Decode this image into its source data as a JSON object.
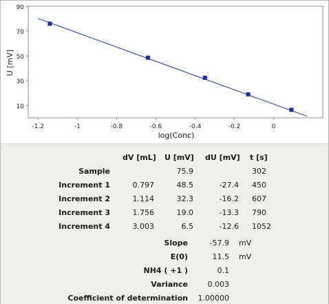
{
  "chart_data": {
    "type": "scatter",
    "xlabel": "log(Conc)",
    "ylabel": "U [mV]",
    "xlim": [
      -1.25,
      0.25
    ],
    "ylim": [
      0,
      90
    ],
    "xticks": [
      "-1.2",
      "-1",
      "-0.8",
      "-0.6",
      "-0.4",
      "-0.2",
      "0"
    ],
    "xtick_values": [
      -1.2,
      -1.0,
      -0.8,
      -0.6,
      -0.4,
      -0.2,
      0.0
    ],
    "yticks": [
      "90",
      "70",
      "50",
      "30",
      "10"
    ],
    "ytick_values": [
      90,
      70,
      50,
      30,
      10
    ],
    "points": [
      {
        "x": -1.14,
        "y": 75.9
      },
      {
        "x": -0.64,
        "y": 48.5
      },
      {
        "x": -0.35,
        "y": 32.3
      },
      {
        "x": -0.13,
        "y": 19.0
      },
      {
        "x": 0.09,
        "y": 6.5
      }
    ],
    "fit_line": {
      "x": [
        -1.2,
        0.17
      ],
      "y": [
        80.1,
        1.3
      ]
    },
    "grid": false,
    "marker_color": "#1f2d9e",
    "line_color": "#1f2d9e"
  },
  "table": {
    "headers": [
      "dV [mL]",
      "U [mV]",
      "dU [mV]",
      "t [s]"
    ],
    "rows": [
      {
        "label": "Sample",
        "dv": "",
        "u": "75.9",
        "du": "",
        "t": "302"
      },
      {
        "label": "Increment 1",
        "dv": "0.797",
        "u": "48.5",
        "du": "-27.4",
        "t": "450"
      },
      {
        "label": "Increment 2",
        "dv": "1.114",
        "u": "32.3",
        "du": "-16.2",
        "t": "607"
      },
      {
        "label": "Increment 3",
        "dv": "1.756",
        "u": "19.0",
        "du": "-13.3",
        "t": "790"
      },
      {
        "label": "Increment 4",
        "dv": "3.003",
        "u": "6.5",
        "du": "-12.6",
        "t": "1052"
      }
    ]
  },
  "stats": [
    {
      "label": "Slope",
      "value": "-57.9",
      "unit": "mV"
    },
    {
      "label": "E(0)",
      "value": "11.5",
      "unit": "mV"
    },
    {
      "label": "NH4 ( +1 )",
      "value": "0.1",
      "unit": ""
    },
    {
      "label": "Variance",
      "value": "0.003",
      "unit": ""
    },
    {
      "label": "Coefficient of determination",
      "value": "1.00000",
      "unit": ""
    }
  ]
}
